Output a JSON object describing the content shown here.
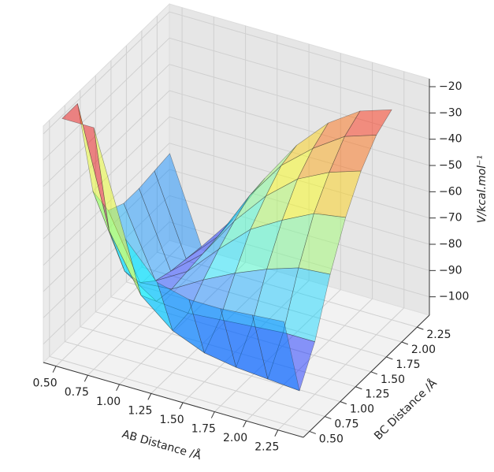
{
  "chart_data": {
    "type": "surface",
    "xlabel": "AB Distance /Å",
    "ylabel": "BC Distance /Å",
    "zlabel": "V/kcal.mol⁻¹",
    "x": [
      0.5,
      0.75,
      1.0,
      1.25,
      1.5,
      1.75,
      2.0,
      2.25
    ],
    "y": [
      0.5,
      0.75,
      1.0,
      1.25,
      1.5,
      1.75,
      2.0,
      2.25
    ],
    "z": [
      [
        -15,
        -15,
        -54,
        -67,
        -70,
        -70,
        -69,
        -68
      ],
      [
        -15,
        -60,
        -81,
        -91,
        -96,
        -98,
        -99,
        -100
      ],
      [
        -54,
        -81,
        -89,
        -90,
        -89,
        -88,
        -87,
        -86
      ],
      [
        -67,
        -91,
        -90,
        -83,
        -77,
        -72,
        -68,
        -67
      ],
      [
        -70,
        -96,
        -89,
        -77,
        -66,
        -59,
        -53,
        -51
      ],
      [
        -70,
        -98,
        -88,
        -72,
        -59,
        -49,
        -43,
        -39
      ],
      [
        -69,
        -99,
        -87,
        -68,
        -53,
        -43,
        -35,
        -31
      ],
      [
        -68,
        -100,
        -87,
        -67,
        -51,
        -39,
        -31,
        -27
      ]
    ],
    "colormap": "jet",
    "xlim": [
      0.4,
      2.45
    ],
    "ylim": [
      0.4,
      2.45
    ],
    "zlim": [
      -107,
      -17
    ],
    "xticks": [
      {
        "value": 0.5,
        "label": "0.50"
      },
      {
        "value": 0.75,
        "label": "0.75"
      },
      {
        "value": 1.0,
        "label": "1.00"
      },
      {
        "value": 1.25,
        "label": "1.25"
      },
      {
        "value": 1.5,
        "label": "1.50"
      },
      {
        "value": 1.75,
        "label": "1.75"
      },
      {
        "value": 2.0,
        "label": "2.00"
      },
      {
        "value": 2.25,
        "label": "2.25"
      }
    ],
    "yticks": [
      {
        "value": 0.5,
        "label": "0.50"
      },
      {
        "value": 0.75,
        "label": "0.75"
      },
      {
        "value": 1.0,
        "label": "1.00"
      },
      {
        "value": 1.25,
        "label": "1.25"
      },
      {
        "value": 1.5,
        "label": "1.50"
      },
      {
        "value": 1.75,
        "label": "1.75"
      },
      {
        "value": 2.0,
        "label": "2.00"
      },
      {
        "value": 2.25,
        "label": "2.25"
      }
    ],
    "zticks": [
      {
        "value": -20,
        "label": "−20"
      },
      {
        "value": -30,
        "label": "−30"
      },
      {
        "value": -40,
        "label": "−40"
      },
      {
        "value": -50,
        "label": "−50"
      },
      {
        "value": -60,
        "label": "−60"
      },
      {
        "value": -70,
        "label": "−70"
      },
      {
        "value": -80,
        "label": "−80"
      },
      {
        "value": -90,
        "label": "−90"
      },
      {
        "value": -100,
        "label": "−100"
      }
    ],
    "grid": true
  }
}
